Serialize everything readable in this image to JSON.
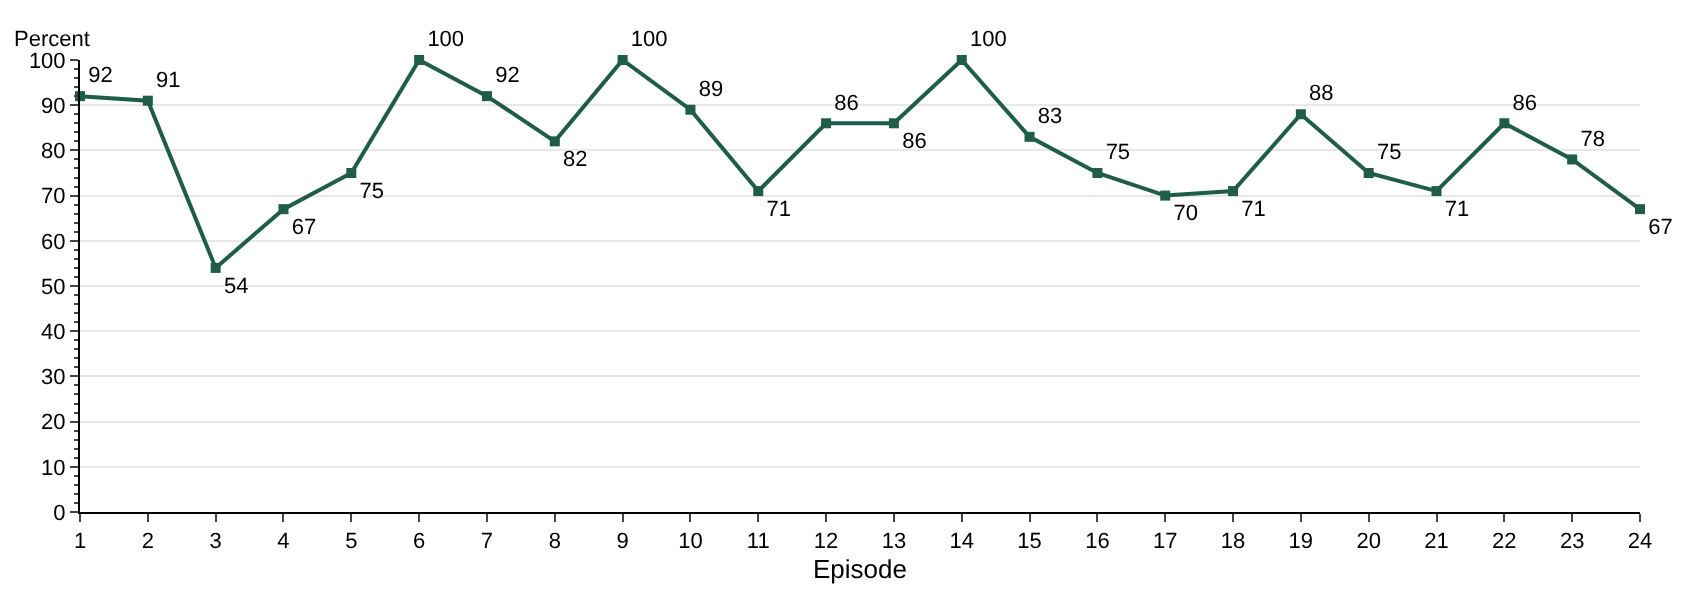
{
  "chart_data": {
    "type": "line",
    "xlabel": "Episode",
    "ylabel": "Percent",
    "x": [
      1,
      2,
      3,
      4,
      5,
      6,
      7,
      8,
      9,
      10,
      11,
      12,
      13,
      14,
      15,
      16,
      17,
      18,
      19,
      20,
      21,
      22,
      23,
      24
    ],
    "series": [
      {
        "color": "#1f5c4a",
        "values": [
          92,
          91,
          54,
          67,
          75,
          100,
          92,
          82,
          100,
          89,
          71,
          86,
          86,
          100,
          83,
          75,
          70,
          71,
          88,
          75,
          71,
          86,
          78,
          67
        ]
      }
    ],
    "xlim": [
      1,
      24
    ],
    "xticks": [
      1,
      2,
      3,
      4,
      5,
      6,
      7,
      8,
      9,
      10,
      11,
      12,
      13,
      14,
      15,
      16,
      17,
      18,
      19,
      20,
      21,
      22,
      23,
      24
    ],
    "ylim": [
      0,
      100
    ],
    "yticks": [
      0,
      10,
      20,
      30,
      40,
      50,
      60,
      70,
      80,
      90,
      100
    ],
    "grid": "y",
    "marker": "square",
    "line_style": "solid",
    "data_labels": true
  }
}
